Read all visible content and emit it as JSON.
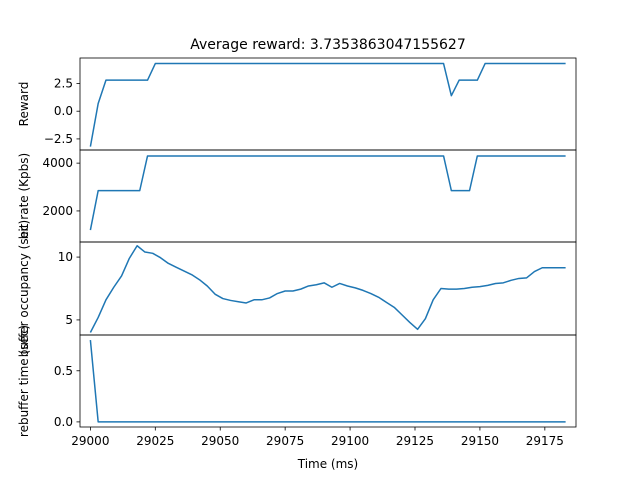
{
  "chart_data": {
    "type": "line",
    "title": "Average reward: 3.7353863047155627",
    "xlabel": "Time (ms)",
    "xlim": [
      28996,
      29187
    ],
    "xticks": [
      29000,
      29025,
      29050,
      29075,
      29100,
      29125,
      29150,
      29175
    ],
    "line_color": "#1f77b4",
    "panels": [
      {
        "ylabel": "Reward",
        "ylim": [
          -3.5,
          4.8
        ],
        "yticks": [
          -2.5,
          0.0,
          2.5
        ],
        "ytick_labels": [
          "−2.5",
          "0.0",
          "2.5"
        ],
        "series": [
          {
            "x": [
              29000,
              29003,
              29006,
              29022,
              29025,
              29136,
              29139,
              29142,
              29149,
              29152,
              29183
            ],
            "y": [
              -3.2,
              0.7,
              2.8,
              2.8,
              4.3,
              4.3,
              1.4,
              2.8,
              2.8,
              4.3,
              4.3
            ]
          }
        ]
      },
      {
        "ylabel": "bit rate (Kpbs)",
        "ylim": [
          700,
          4550
        ],
        "yticks": [
          2000,
          4000
        ],
        "ytick_labels": [
          "2000",
          "4000"
        ],
        "series": [
          {
            "x": [
              29000,
              29003,
              29019,
              29022,
              29136,
              29139,
              29146,
              29149,
              29183
            ],
            "y": [
              1200,
              2850,
              2850,
              4300,
              4300,
              2850,
              2850,
              4300,
              4300
            ]
          }
        ]
      },
      {
        "ylabel": "buffer occupancy (sec)",
        "ylim": [
          3.8,
          11.2
        ],
        "yticks": [
          5,
          10
        ],
        "ytick_labels": [
          "5",
          "10"
        ],
        "series": [
          {
            "x": [
              29000,
              29003,
              29006,
              29009,
              29012,
              29015,
              29018,
              29021,
              29024,
              29027,
              29030,
              29033,
              29036,
              29039,
              29042,
              29045,
              29048,
              29051,
              29054,
              29057,
              29060,
              29063,
              29066,
              29069,
              29072,
              29075,
              29078,
              29081,
              29084,
              29087,
              29090,
              29093,
              29096,
              29099,
              29102,
              29105,
              29108,
              29111,
              29114,
              29117,
              29120,
              29123,
              29126,
              29129,
              29132,
              29135,
              29138,
              29141,
              29144,
              29147,
              29150,
              29153,
              29156,
              29159,
              29162,
              29165,
              29168,
              29171,
              29174,
              29177,
              29180,
              29183
            ],
            "y": [
              4.0,
              5.2,
              6.6,
              7.6,
              8.5,
              9.9,
              10.9,
              10.4,
              10.3,
              9.95,
              9.5,
              9.2,
              8.9,
              8.6,
              8.2,
              7.7,
              7.05,
              6.7,
              6.55,
              6.45,
              6.35,
              6.6,
              6.6,
              6.75,
              7.1,
              7.3,
              7.3,
              7.45,
              7.7,
              7.8,
              7.95,
              7.6,
              7.9,
              7.7,
              7.55,
              7.35,
              7.1,
              6.8,
              6.4,
              6.0,
              5.4,
              4.8,
              4.25,
              5.1,
              6.6,
              7.5,
              7.45,
              7.45,
              7.5,
              7.6,
              7.65,
              7.75,
              7.9,
              7.95,
              8.15,
              8.3,
              8.35,
              8.85,
              9.15,
              9.15,
              9.15,
              9.15
            ]
          }
        ]
      },
      {
        "ylabel": "rebuffer time (sec)",
        "ylim": [
          -0.05,
          0.85
        ],
        "yticks": [
          0.0,
          0.5
        ],
        "ytick_labels": [
          "0.0",
          "0.5"
        ],
        "series": [
          {
            "x": [
              29000,
              29003,
              29183
            ],
            "y": [
              0.8,
              0.0,
              0.0
            ]
          }
        ]
      }
    ]
  }
}
